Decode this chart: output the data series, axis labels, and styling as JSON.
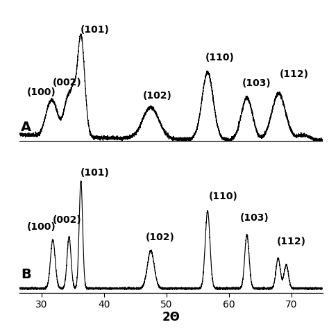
{
  "xlabel": "2Θ",
  "xlim": [
    26.5,
    75
  ],
  "x_ticks": [
    30,
    40,
    50,
    60,
    70
  ],
  "background_color": "#ffffff",
  "line_color": "#000000",
  "label_fontsize": 10,
  "panel_label_fontsize": 14,
  "peaks": {
    "100": 31.8,
    "002": 34.4,
    "101": 36.3,
    "102": 47.5,
    "110": 56.6,
    "103": 62.9,
    "112": 68.0
  }
}
